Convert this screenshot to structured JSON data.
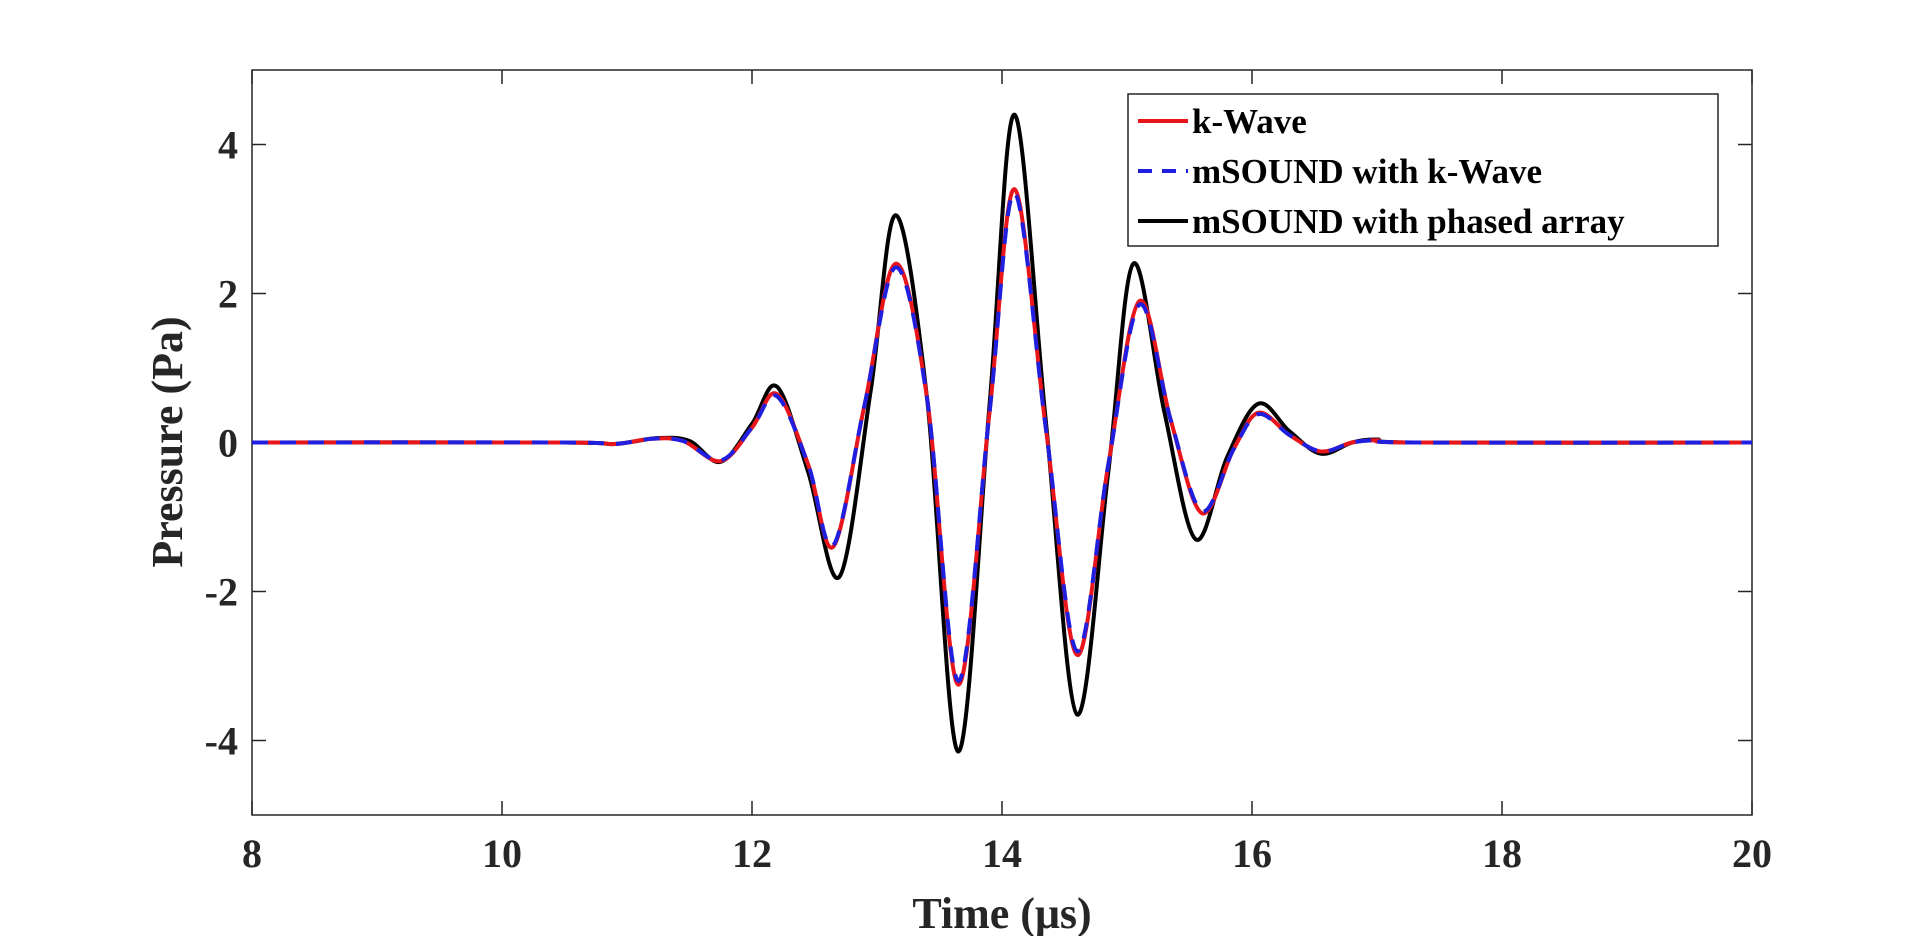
{
  "chart_data": {
    "type": "line",
    "xlabel": "Time (μs)",
    "ylabel": "Pressure (Pa)",
    "xlim": [
      8,
      20
    ],
    "ylim": [
      -5,
      5
    ],
    "xticks": [
      8,
      10,
      12,
      14,
      16,
      18,
      20
    ],
    "xtick_labels": [
      "8",
      "10",
      "12",
      "14",
      "16",
      "18",
      "20"
    ],
    "yticks": [
      -4,
      -2,
      0,
      2,
      4
    ],
    "ytick_labels": [
      "-4",
      "-2",
      "0",
      "2",
      "4"
    ],
    "grid": false,
    "legend_position": "top-right",
    "series": [
      {
        "name": "k-Wave",
        "color": "#e8151b",
        "dash": "solid",
        "x": [
          8,
          10.5,
          10.9,
          11.2,
          11.45,
          11.75,
          12.0,
          12.2,
          12.45,
          12.65,
          12.9,
          13.15,
          13.4,
          13.65,
          13.9,
          14.1,
          14.35,
          14.6,
          14.85,
          15.1,
          15.35,
          15.6,
          15.85,
          16.05,
          16.3,
          16.55,
          16.8,
          17.0,
          17.3,
          20
        ],
        "y": [
          0,
          0,
          -0.02,
          0.05,
          0.02,
          -0.25,
          0.2,
          0.65,
          -0.3,
          -1.4,
          0.5,
          2.4,
          0.6,
          -3.25,
          0.4,
          3.4,
          0.2,
          -2.85,
          -0.3,
          1.9,
          0.3,
          -0.95,
          -0.1,
          0.4,
          0.1,
          -0.12,
          0.0,
          0.03,
          0,
          0
        ]
      },
      {
        "name": "mSOUND with k-Wave",
        "color": "#1f1fe0",
        "dash": "dashed",
        "x": [
          8,
          10.5,
          10.9,
          11.2,
          11.45,
          11.75,
          12.0,
          12.2,
          12.45,
          12.65,
          12.9,
          13.15,
          13.4,
          13.65,
          13.9,
          14.1,
          14.35,
          14.6,
          14.85,
          15.1,
          15.35,
          15.6,
          15.85,
          16.05,
          16.3,
          16.55,
          16.8,
          17.0,
          17.3,
          20
        ],
        "y": [
          0,
          0,
          -0.02,
          0.05,
          0.02,
          -0.24,
          0.2,
          0.62,
          -0.3,
          -1.38,
          0.5,
          2.35,
          0.6,
          -3.2,
          0.4,
          3.35,
          0.2,
          -2.8,
          -0.3,
          1.85,
          0.3,
          -0.92,
          -0.1,
          0.38,
          0.1,
          -0.12,
          0.0,
          0.03,
          0,
          0
        ]
      },
      {
        "name": "mSOUND with phased array",
        "color": "#000000",
        "dash": "solid",
        "x": [
          8,
          10.5,
          10.9,
          11.25,
          11.5,
          11.75,
          12.0,
          12.2,
          12.45,
          12.7,
          12.95,
          13.15,
          13.4,
          13.65,
          13.9,
          14.1,
          14.35,
          14.6,
          14.85,
          15.05,
          15.3,
          15.55,
          15.8,
          16.05,
          16.3,
          16.55,
          16.8,
          17.0,
          17.3,
          20
        ],
        "y": [
          0,
          0,
          -0.02,
          0.06,
          0.02,
          -0.26,
          0.25,
          0.75,
          -0.4,
          -1.8,
          0.7,
          3.05,
          0.6,
          -4.15,
          0.5,
          4.4,
          0.3,
          -3.65,
          -0.4,
          2.4,
          0.4,
          -1.3,
          -0.2,
          0.52,
          0.15,
          -0.15,
          0.0,
          0.04,
          0,
          0
        ]
      }
    ]
  }
}
